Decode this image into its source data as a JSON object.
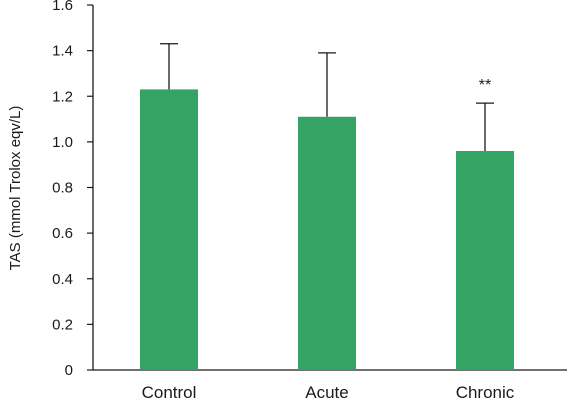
{
  "chart_data": {
    "type": "bar",
    "title": "",
    "xlabel": "",
    "ylabel": "TAS (mmol Trolox eqv/L)",
    "ylim": [
      0,
      1.6
    ],
    "yticks": [
      "0",
      "0.2",
      "0.4",
      "0.6",
      "0.8",
      "1.0",
      "1.2",
      "1.4",
      "1.6"
    ],
    "categories": [
      "Control",
      "Acute",
      "Chronic"
    ],
    "values": [
      1.23,
      1.11,
      0.96
    ],
    "error_upper": [
      0.2,
      0.28,
      0.21
    ],
    "annotations": [
      "",
      "",
      "**"
    ],
    "grid": false,
    "bar_color": "#33a463",
    "axis_color": "#1a1a1a"
  }
}
